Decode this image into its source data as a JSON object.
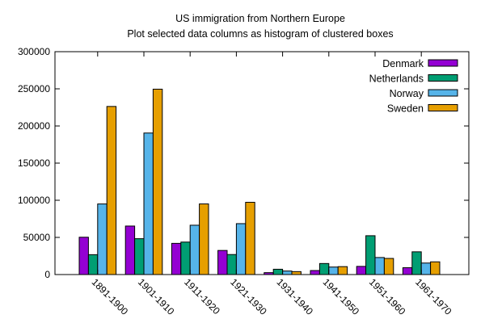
{
  "chart_data": {
    "type": "bar",
    "title": "US immigration from Northern Europe",
    "subtitle": "Plot selected data columns as histogram of clustered boxes",
    "xlabel": "",
    "ylabel": "",
    "ylim": [
      0,
      300000
    ],
    "yticks": [
      0,
      50000,
      100000,
      150000,
      200000,
      250000,
      300000
    ],
    "categories": [
      "1891-1900",
      "1901-1910",
      "1911-1920",
      "1921-1930",
      "1931-1940",
      "1941-1950",
      "1951-1960",
      "1961-1970"
    ],
    "series": [
      {
        "name": "Denmark",
        "color": "#9400d3",
        "values": [
          50231,
          65285,
          41983,
          32430,
          2559,
          5393,
          10984,
          9201
        ]
      },
      {
        "name": "Netherlands",
        "color": "#009e73",
        "values": [
          26758,
          48262,
          43718,
          26948,
          7150,
          14860,
          52277,
          30606
        ]
      },
      {
        "name": "Norway",
        "color": "#56b4e9",
        "values": [
          95015,
          190505,
          66395,
          68531,
          4740,
          10100,
          22935,
          15484
        ]
      },
      {
        "name": "Sweden",
        "color": "#e69f00",
        "values": [
          226266,
          249534,
          95074,
          97249,
          3960,
          10665,
          21697,
          17116
        ]
      }
    ],
    "grid": false,
    "legend_position": "top-right"
  }
}
